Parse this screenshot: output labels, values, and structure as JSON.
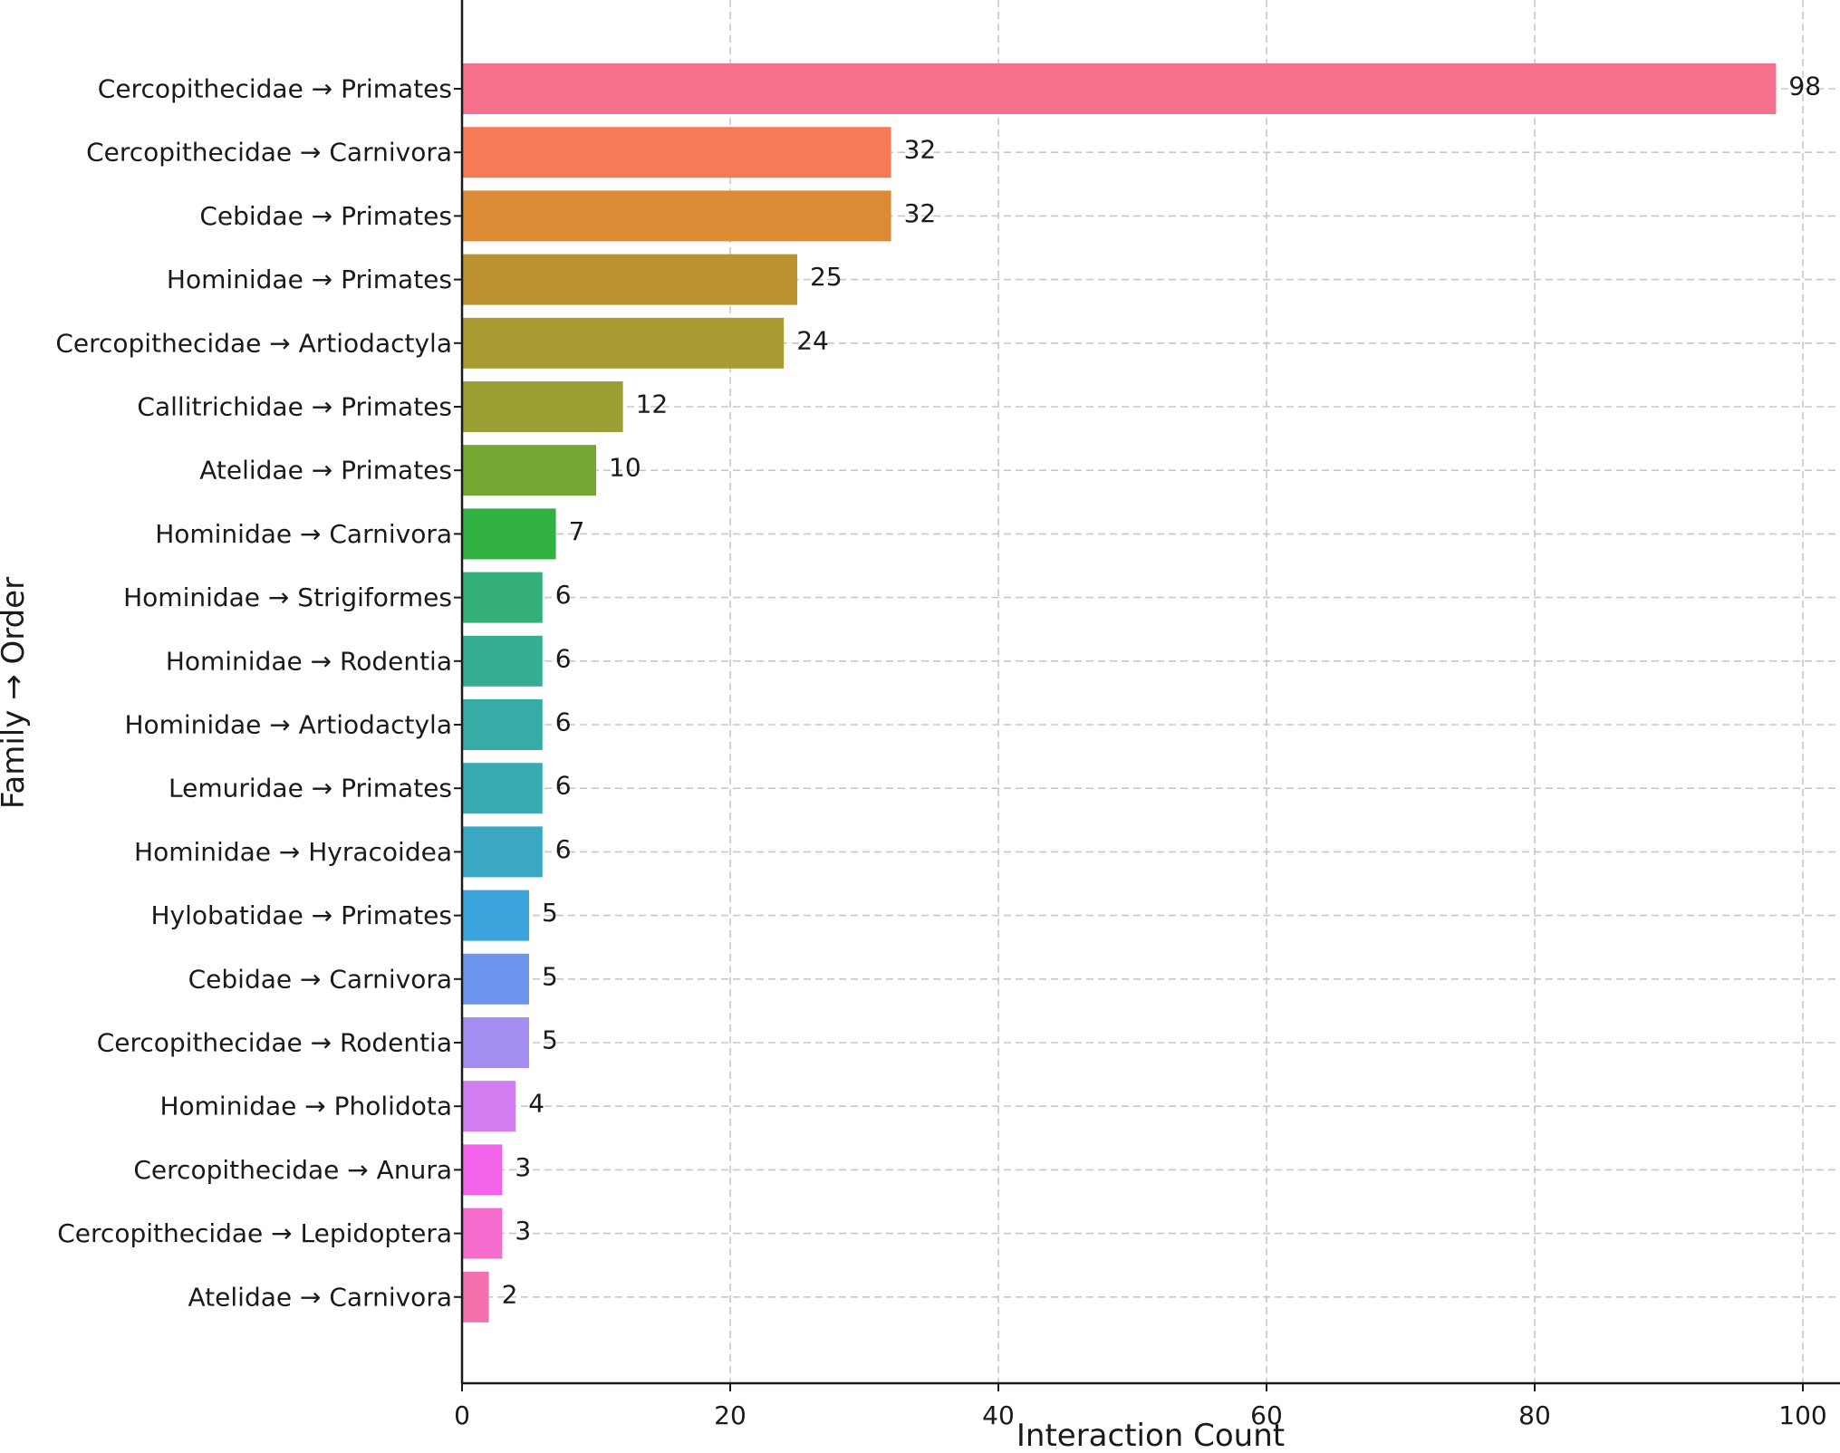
{
  "chart_data": {
    "type": "bar",
    "orientation": "horizontal",
    "xlabel": "Interaction Count",
    "ylabel": "Family → Order",
    "xlim": [
      0,
      100
    ],
    "xticks": [
      0,
      20,
      40,
      60,
      80,
      100
    ],
    "grid": true,
    "categories": [
      "Cercopithecidae → Primates",
      "Cercopithecidae → Carnivora",
      "Cebidae → Primates",
      "Hominidae → Primates",
      "Cercopithecidae → Artiodactyla",
      "Callitrichidae → Primates",
      "Atelidae → Primates",
      "Hominidae → Carnivora",
      "Hominidae → Strigiformes",
      "Hominidae → Rodentia",
      "Hominidae → Artiodactyla",
      "Lemuridae → Primates",
      "Hominidae → Hyracoidea",
      "Hylobatidae → Primates",
      "Cebidae → Carnivora",
      "Cercopithecidae → Rodentia",
      "Hominidae → Pholidota",
      "Cercopithecidae → Anura",
      "Cercopithecidae → Lepidoptera",
      "Atelidae → Carnivora"
    ],
    "values": [
      98,
      32,
      32,
      25,
      24,
      12,
      10,
      7,
      6,
      6,
      6,
      6,
      6,
      5,
      5,
      5,
      4,
      3,
      3,
      2
    ],
    "colors": [
      "#f5708a",
      "#f57a55",
      "#dc8a33",
      "#bd9332",
      "#aa9a32",
      "#9aa033",
      "#75a832",
      "#32b143",
      "#35af7a",
      "#36ae93",
      "#37aca6",
      "#38aab2",
      "#3aa7c3",
      "#3ca4dd",
      "#6d95ed",
      "#a48ef2",
      "#d27ef0",
      "#f363ea",
      "#f36bcc",
      "#f470ac"
    ]
  }
}
